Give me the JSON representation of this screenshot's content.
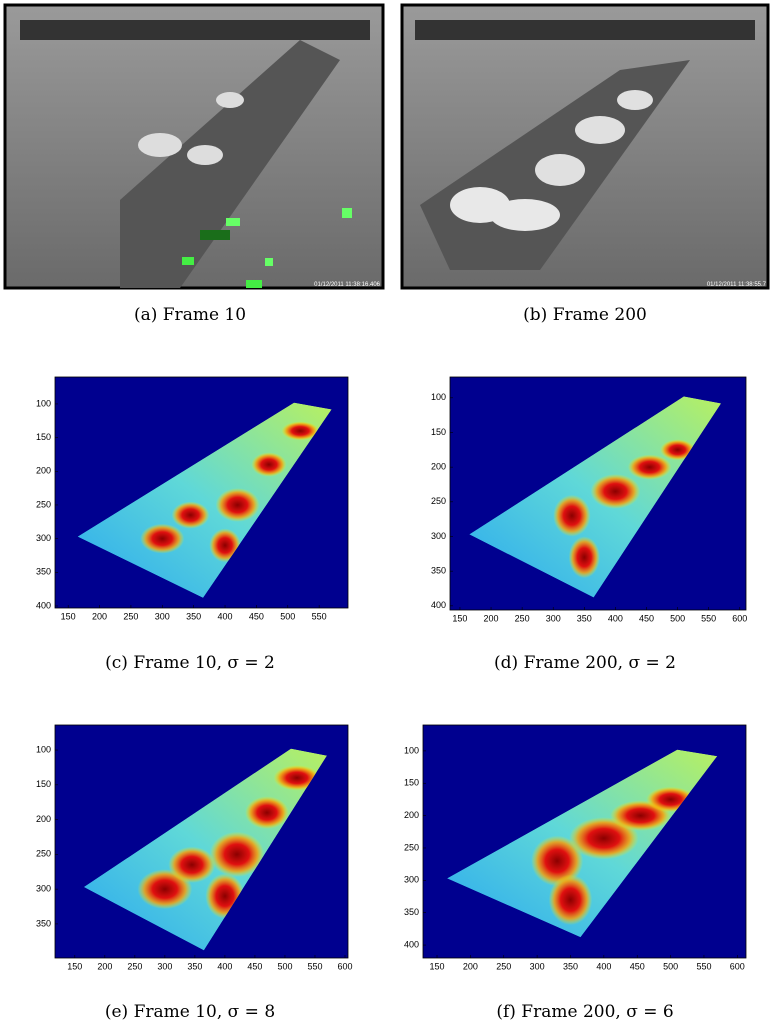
{
  "panels": [
    {
      "label": "(a)",
      "caption": "Frame 10",
      "timestamp": "01/12/2011 11:38:16.406"
    },
    {
      "label": "(b)",
      "caption": "Frame 200",
      "timestamp": "01/12/2011 11:38:55.7"
    },
    {
      "label": "(c)",
      "caption": "Frame 10, σ = 2",
      "xlim": [
        129,
        596
      ],
      "ylim": [
        60,
        403
      ],
      "xticks": [
        150,
        200,
        250,
        300,
        350,
        400,
        450,
        500,
        550
      ],
      "yticks": [
        100,
        150,
        200,
        250,
        300,
        350,
        400
      ]
    },
    {
      "label": "(d)",
      "caption": "Frame 200, σ = 2",
      "xlim": [
        134,
        610
      ],
      "ylim": [
        70,
        406
      ],
      "xticks": [
        150,
        200,
        250,
        300,
        350,
        400,
        450,
        500,
        550,
        600
      ],
      "yticks": [
        100,
        150,
        200,
        250,
        300,
        350,
        400
      ]
    },
    {
      "label": "(e)",
      "caption": "Frame 10, σ = 8",
      "xlim": [
        117,
        605
      ],
      "ylim": [
        64,
        399
      ],
      "xticks": [
        150,
        200,
        250,
        300,
        350,
        400,
        450,
        500,
        550,
        600
      ],
      "yticks": [
        100,
        150,
        200,
        250,
        300,
        350
      ]
    },
    {
      "label": "(f)",
      "caption": "Frame 200, σ = 6",
      "xlim": [
        129,
        613
      ],
      "ylim": [
        60,
        420
      ],
      "xticks": [
        150,
        200,
        250,
        300,
        350,
        400,
        450,
        500,
        550,
        600
      ],
      "yticks": [
        100,
        150,
        200,
        250,
        300,
        350,
        400
      ]
    }
  ]
}
